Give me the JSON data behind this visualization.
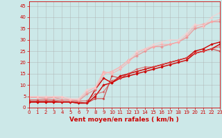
{
  "bg_color": "#cce8e8",
  "grid_color": "#aaaaaa",
  "xlabel": "Vent moyen/en rafales ( km/h )",
  "xlabel_color": "#cc0000",
  "xlabel_fontsize": 6.5,
  "tick_color": "#cc0000",
  "tick_fontsize": 5,
  "yticks": [
    0,
    5,
    10,
    15,
    20,
    25,
    30,
    35,
    40,
    45
  ],
  "xticks": [
    0,
    1,
    2,
    3,
    4,
    5,
    6,
    7,
    8,
    9,
    10,
    11,
    12,
    13,
    14,
    15,
    16,
    17,
    18,
    19,
    20,
    21,
    22,
    23
  ],
  "xlim": [
    0,
    23
  ],
  "ylim": [
    0,
    47
  ],
  "series": [
    {
      "x": [
        0,
        1,
        2,
        3,
        4,
        5,
        6,
        7,
        8,
        9,
        10,
        11,
        12,
        13,
        14,
        15,
        16,
        17,
        18,
        19,
        20,
        21,
        22,
        23
      ],
      "y": [
        2.5,
        2.5,
        2.5,
        2.5,
        2.5,
        2.5,
        2.0,
        2.0,
        8,
        13,
        11,
        14,
        15,
        16,
        17,
        18,
        19,
        20,
        21,
        22,
        25,
        26,
        28,
        29
      ],
      "color": "#cc0000",
      "lw": 1.0,
      "marker": "D",
      "ms": 1.8,
      "alpha": 1.0
    },
    {
      "x": [
        0,
        1,
        2,
        3,
        4,
        5,
        6,
        7,
        8,
        9,
        10,
        11,
        12,
        13,
        14,
        15,
        16,
        17,
        18,
        19,
        20,
        21,
        22,
        23
      ],
      "y": [
        2.5,
        2.5,
        2.5,
        2.5,
        2.5,
        2.5,
        2.0,
        2.0,
        5,
        10,
        11,
        13,
        14,
        15,
        16,
        17,
        18,
        19,
        20,
        21,
        24,
        25,
        26,
        28
      ],
      "color": "#cc0000",
      "lw": 1.0,
      "marker": "D",
      "ms": 1.8,
      "alpha": 1.0
    },
    {
      "x": [
        0,
        1,
        2,
        3,
        4,
        5,
        6,
        7,
        8,
        9,
        10,
        11,
        12,
        13,
        14,
        15,
        16,
        17,
        18,
        19,
        20,
        21,
        22,
        23
      ],
      "y": [
        3,
        3,
        3,
        3,
        2.5,
        2.5,
        2.5,
        2,
        4,
        4,
        14,
        13,
        15,
        16,
        17,
        18,
        19,
        20,
        21,
        22,
        24,
        25,
        26,
        25
      ],
      "color": "#cc2222",
      "lw": 0.9,
      "marker": "D",
      "ms": 1.6,
      "alpha": 0.75
    },
    {
      "x": [
        0,
        1,
        2,
        3,
        4,
        5,
        6,
        7,
        8,
        9,
        10,
        11,
        12,
        13,
        14,
        15,
        16,
        17,
        18,
        19,
        20,
        21,
        22,
        23
      ],
      "y": [
        3.5,
        3.5,
        3.5,
        3.5,
        3,
        3,
        3,
        3,
        6,
        7,
        12,
        13,
        15,
        17,
        18,
        18,
        19,
        20,
        21,
        22,
        24,
        25,
        26,
        27
      ],
      "color": "#dd4444",
      "lw": 0.9,
      "marker": "D",
      "ms": 1.6,
      "alpha": 0.65
    },
    {
      "x": [
        0,
        1,
        2,
        3,
        4,
        5,
        6,
        7,
        8,
        9,
        10,
        11,
        12,
        13,
        14,
        15,
        16,
        17,
        18,
        19,
        20,
        21,
        22,
        23
      ],
      "y": [
        4.5,
        4.5,
        4,
        4.5,
        3.5,
        3.5,
        3,
        6,
        8,
        15,
        16,
        18,
        21,
        23,
        25,
        27,
        27,
        28,
        29,
        31,
        35,
        36,
        38,
        38
      ],
      "color": "#ee8888",
      "lw": 1.0,
      "marker": "D",
      "ms": 2.0,
      "alpha": 0.75
    },
    {
      "x": [
        0,
        1,
        2,
        3,
        4,
        5,
        6,
        7,
        8,
        9,
        10,
        11,
        12,
        13,
        14,
        15,
        16,
        17,
        18,
        19,
        20,
        21,
        22,
        23
      ],
      "y": [
        4.5,
        4.5,
        4.5,
        4.5,
        4.5,
        3.5,
        3.5,
        7,
        9,
        16,
        15,
        17,
        20,
        24,
        26,
        27,
        28,
        28,
        29,
        32,
        36,
        37,
        38,
        39
      ],
      "color": "#ffaaaa",
      "lw": 1.0,
      "marker": "D",
      "ms": 2.0,
      "alpha": 0.7
    },
    {
      "x": [
        0,
        1,
        2,
        3,
        4,
        5,
        6,
        7,
        8,
        9,
        10,
        11,
        12,
        13,
        14,
        15,
        16,
        17,
        18,
        19,
        20,
        21,
        22,
        23
      ],
      "y": [
        5,
        5,
        5,
        5,
        5,
        4,
        4,
        8,
        9,
        15,
        16,
        18,
        21,
        25,
        26,
        28,
        29,
        30,
        30,
        33,
        37,
        36,
        40,
        42
      ],
      "color": "#ffcccc",
      "lw": 1.0,
      "marker": "^",
      "ms": 2.5,
      "alpha": 0.65
    }
  ]
}
